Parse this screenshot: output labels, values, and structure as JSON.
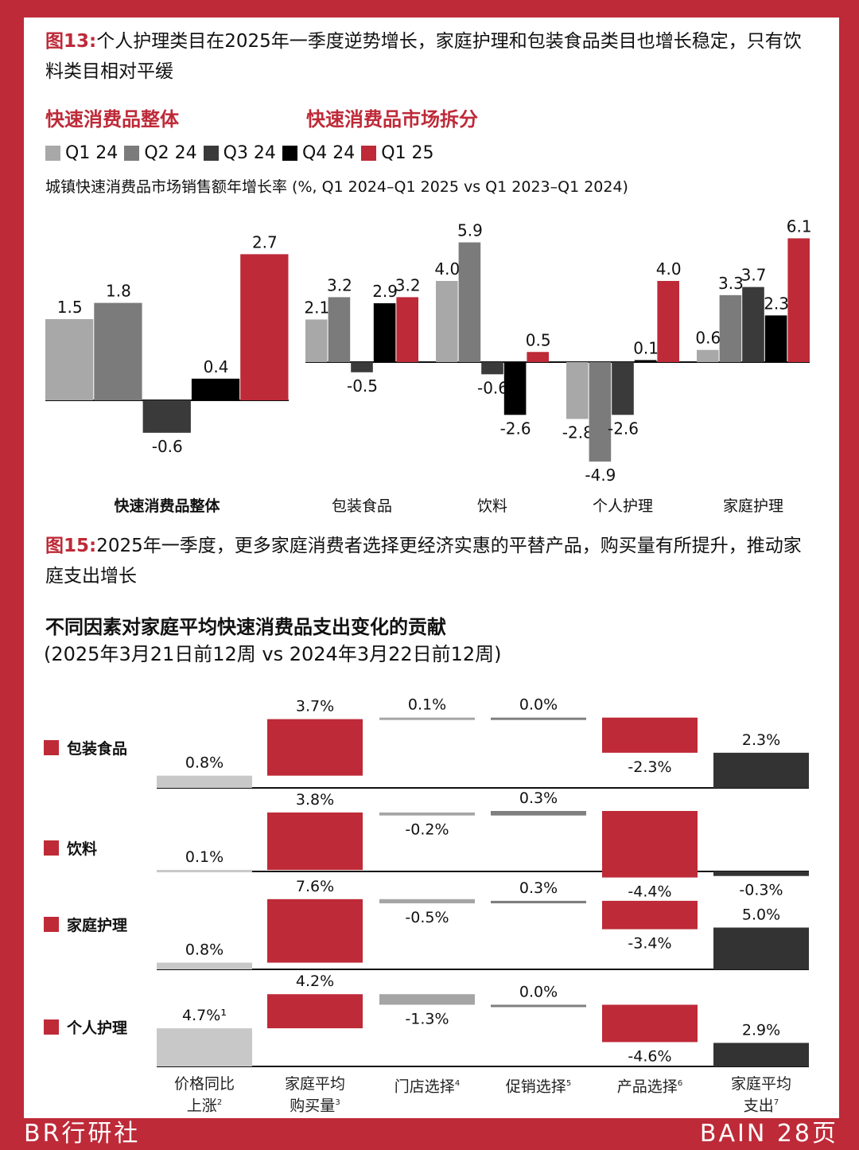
{
  "colors": {
    "brand": "#be2a38",
    "q1_24": "#a8a8a8",
    "q2_24": "#7b7b7b",
    "q3_24": "#3a3a3a",
    "q4_24": "#000000",
    "q1_25": "#be2a38",
    "price": "#c8c8c8",
    "store": "#a5a5a5",
    "promo": "#7f7f7f",
    "total": "#333333"
  },
  "fig13": {
    "label": "图13:",
    "text": "个人护理类目在2025年一季度逆势增长，家庭护理和包装食品类目也增长稳定，只有饮料类目相对平缓"
  },
  "section_left": "快速消费品整体",
  "section_right": "快速消费品市场拆分",
  "subtitle": "城镇快速消费品市场销售额年增长率 (%, Q1 2024–Q1 2025 vs Q1 2023–Q1 2024)",
  "fig15": {
    "label": "图15:",
    "text": "2025年一季度，更多家庭消费者选择更经济实惠的平替产品，购买量有所提升，推动家庭支出增长"
  },
  "chart2_title": "不同因素对家庭平均快速消费品支出变化的贡献",
  "chart2_subtitle": "(2025年3月21日前12周 vs 2024年3月22日前12周)",
  "chart_data": [
    {
      "type": "bar",
      "series_names": [
        "Q1 24",
        "Q2 24",
        "Q3 24",
        "Q4 24",
        "Q1 25"
      ],
      "ylabel": "",
      "panels": [
        {
          "categories": [
            "快速消费品整体"
          ],
          "values": [
            [
              1.5,
              1.8,
              -0.6,
              0.4,
              2.7
            ]
          ]
        },
        {
          "categories": [
            "包装食品",
            "饮料",
            "个人护理",
            "家庭护理"
          ],
          "values": [
            [
              2.1,
              3.2,
              -0.5,
              2.9,
              3.2
            ],
            [
              4.0,
              5.9,
              -0.6,
              -2.6,
              0.5
            ],
            [
              -2.8,
              -4.9,
              -2.6,
              0.1,
              4.0
            ],
            [
              0.6,
              3.3,
              3.7,
              2.3,
              6.1
            ]
          ]
        }
      ],
      "grid": false,
      "legend": "top"
    },
    {
      "type": "waterfall",
      "steps": [
        {
          "label": "价格同比上涨",
          "sup": "2",
          "lines": [
            "价格同比",
            "上涨"
          ]
        },
        {
          "label": "家庭平均购买量",
          "sup": "3",
          "lines": [
            "家庭平均",
            "购买量"
          ]
        },
        {
          "label": "门店选择",
          "sup": "4",
          "lines": [
            "门店选择"
          ]
        },
        {
          "label": "促销选择",
          "sup": "5",
          "lines": [
            "促销选择"
          ]
        },
        {
          "label": "产品选择",
          "sup": "6",
          "lines": [
            "产品选择"
          ]
        },
        {
          "label": "家庭平均支出",
          "sup": "7",
          "lines": [
            "家庭平均",
            "支出"
          ]
        }
      ],
      "rows": [
        {
          "name": "包装食品",
          "values": [
            0.8,
            3.7,
            0.1,
            0.0,
            -2.3,
            2.3
          ],
          "labels": [
            "0.8%",
            "3.7%",
            "0.1%",
            "0.0%",
            "-2.3%",
            "2.3%"
          ]
        },
        {
          "name": "饮料",
          "values": [
            0.1,
            3.8,
            -0.2,
            0.3,
            -4.4,
            -0.3
          ],
          "labels": [
            "0.1%",
            "3.8%",
            "-0.2%",
            "0.3%",
            "-4.4%",
            "-0.3%"
          ]
        },
        {
          "name": "家庭护理",
          "values": [
            0.8,
            7.6,
            -0.5,
            0.3,
            -3.4,
            5.0
          ],
          "labels": [
            "0.8%",
            "7.6%",
            "-0.5%",
            "0.3%",
            "-3.4%",
            "5.0%"
          ]
        },
        {
          "name": "个人护理",
          "values": [
            4.7,
            4.2,
            -1.3,
            0.0,
            -4.6,
            2.9
          ],
          "labels": [
            "4.7%¹",
            "4.2%",
            "-1.3%",
            "0.0%",
            "-4.6%",
            "2.9%"
          ]
        }
      ]
    }
  ],
  "footer": {
    "left": "BR行研社",
    "right": "BAIN 28页"
  }
}
